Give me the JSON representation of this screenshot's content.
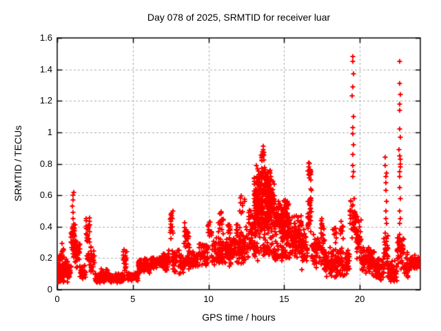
{
  "chart_data": {
    "type": "scatter",
    "title": "Day 078 of 2025, SRMTID for receiver luar",
    "xlabel": "GPS time / hours",
    "ylabel": "SRMTID / TECUs",
    "xlim": [
      0,
      24
    ],
    "ylim": [
      0,
      1.6
    ],
    "xticks": [
      {
        "v": 0,
        "label": "0"
      },
      {
        "v": 5,
        "label": "5"
      },
      {
        "v": 10,
        "label": "10"
      },
      {
        "v": 15,
        "label": "15"
      },
      {
        "v": 20,
        "label": "20"
      }
    ],
    "yticks": [
      {
        "v": 0,
        "label": "0"
      },
      {
        "v": 0.2,
        "label": "0.2"
      },
      {
        "v": 0.4,
        "label": "0.4"
      },
      {
        "v": 0.6,
        "label": "0.6"
      },
      {
        "v": 0.8,
        "label": "0.8"
      },
      {
        "v": 1,
        "label": "1"
      },
      {
        "v": 1.2,
        "label": "1.2"
      },
      {
        "v": 1.4,
        "label": "1.4"
      },
      {
        "v": 1.6,
        "label": "1.6"
      }
    ],
    "grid": {
      "on": true,
      "dashed": true
    },
    "legend": "none",
    "style": {
      "marker": "plus",
      "marker_size": 7,
      "marker_color": "#ff0000",
      "axis_color": "#000000",
      "grid_color": "#a8a8a8",
      "background": "#ffffff"
    },
    "clusters": [
      [
        0.0,
        0.9,
        0.04,
        0.19,
        130
      ],
      [
        0.05,
        0.6,
        0.16,
        0.24,
        18
      ],
      [
        0.3,
        0.45,
        0.22,
        0.3,
        6
      ],
      [
        0.9,
        1.2,
        0.15,
        0.42,
        35
      ],
      [
        1.0,
        1.15,
        0.3,
        0.45,
        12
      ],
      [
        1.1,
        1.5,
        0.12,
        0.35,
        40
      ],
      [
        1.5,
        1.9,
        0.06,
        0.16,
        30
      ],
      [
        1.9,
        2.15,
        0.25,
        0.49,
        28
      ],
      [
        1.95,
        2.1,
        0.15,
        0.25,
        10
      ],
      [
        2.15,
        2.5,
        0.07,
        0.28,
        30
      ],
      [
        2.5,
        4.4,
        0.04,
        0.11,
        160
      ],
      [
        2.9,
        3.35,
        0.07,
        0.15,
        25
      ],
      [
        4.35,
        4.6,
        0.1,
        0.3,
        22
      ],
      [
        4.6,
        5.35,
        0.05,
        0.12,
        55
      ],
      [
        5.35,
        6.2,
        0.1,
        0.2,
        80
      ],
      [
        6.2,
        7.1,
        0.13,
        0.22,
        80
      ],
      [
        7.0,
        7.45,
        0.1,
        0.26,
        40
      ],
      [
        7.45,
        7.65,
        0.27,
        0.54,
        20
      ],
      [
        7.6,
        8.35,
        0.09,
        0.27,
        60
      ],
      [
        8.35,
        8.75,
        0.24,
        0.43,
        26
      ],
      [
        8.4,
        9.35,
        0.1,
        0.25,
        70
      ],
      [
        9.35,
        10.0,
        0.14,
        0.32,
        55
      ],
      [
        9.95,
        10.2,
        0.28,
        0.47,
        14
      ],
      [
        10.2,
        11.1,
        0.14,
        0.34,
        70
      ],
      [
        10.65,
        11.0,
        0.34,
        0.52,
        18
      ],
      [
        11.1,
        12.1,
        0.13,
        0.35,
        80
      ],
      [
        11.25,
        11.45,
        0.33,
        0.46,
        10
      ],
      [
        11.8,
        12.0,
        0.3,
        0.42,
        8
      ],
      [
        12.0,
        12.65,
        0.15,
        0.42,
        60
      ],
      [
        12.05,
        12.4,
        0.45,
        0.62,
        10
      ],
      [
        12.65,
        13.1,
        0.2,
        0.55,
        55
      ],
      [
        13.0,
        14.35,
        0.3,
        0.72,
        270
      ],
      [
        13.15,
        14.15,
        0.6,
        0.8,
        70
      ],
      [
        13.45,
        13.7,
        0.8,
        0.88,
        10
      ],
      [
        13.0,
        14.35,
        0.18,
        0.32,
        45
      ],
      [
        14.35,
        15.35,
        0.28,
        0.62,
        150
      ],
      [
        14.35,
        15.4,
        0.17,
        0.3,
        45
      ],
      [
        15.35,
        16.15,
        0.18,
        0.5,
        90
      ],
      [
        16.15,
        16.55,
        0.12,
        0.42,
        45
      ],
      [
        16.55,
        16.8,
        0.3,
        0.67,
        30
      ],
      [
        16.58,
        16.78,
        0.67,
        0.81,
        20
      ],
      [
        16.8,
        17.65,
        0.12,
        0.4,
        75
      ],
      [
        17.45,
        17.6,
        0.35,
        0.47,
        8
      ],
      [
        17.65,
        19.35,
        0.07,
        0.28,
        160
      ],
      [
        18.2,
        18.45,
        0.28,
        0.42,
        10
      ],
      [
        18.7,
        18.95,
        0.28,
        0.45,
        10
      ],
      [
        19.35,
        19.75,
        0.3,
        0.62,
        45
      ],
      [
        19.75,
        20.1,
        0.18,
        0.48,
        40
      ],
      [
        20.1,
        20.55,
        0.1,
        0.28,
        45
      ],
      [
        20.55,
        21.0,
        0.07,
        0.28,
        55
      ],
      [
        21.0,
        21.6,
        0.04,
        0.22,
        60
      ],
      [
        21.6,
        21.85,
        0.1,
        0.37,
        30
      ],
      [
        21.85,
        22.45,
        0.04,
        0.2,
        55
      ],
      [
        22.45,
        22.9,
        0.12,
        0.38,
        45
      ],
      [
        22.9,
        23.35,
        0.06,
        0.26,
        35
      ],
      [
        23.35,
        23.95,
        0.13,
        0.22,
        60
      ]
    ],
    "spike_strings": [
      {
        "t": 1.05,
        "dt": 0.08,
        "values": [
          0.45,
          0.49,
          0.53,
          0.57,
          0.6,
          0.62
        ]
      },
      {
        "t": 13.57,
        "dt": 0.1,
        "values": [
          0.85,
          0.875,
          0.89,
          0.91
        ]
      },
      {
        "t": 19.55,
        "dt": 0.1,
        "values": [
          0.72,
          0.75,
          0.79,
          0.86,
          0.92,
          0.99,
          1.03,
          1.1,
          1.23,
          1.29,
          1.37,
          1.45,
          1.48
        ]
      },
      {
        "t": 21.72,
        "dt": 0.08,
        "values": [
          0.42,
          0.45,
          0.5,
          0.56,
          0.63,
          0.68,
          0.72,
          0.74,
          0.79,
          0.84
        ]
      },
      {
        "t": 22.65,
        "dt": 0.1,
        "values": [
          0.42,
          0.45,
          0.5,
          0.58,
          0.65,
          0.72,
          0.75,
          0.78,
          0.8,
          0.83,
          0.85,
          0.89,
          0.97,
          1.02,
          1.14,
          1.18,
          1.24,
          1.31,
          1.45
        ]
      }
    ]
  }
}
